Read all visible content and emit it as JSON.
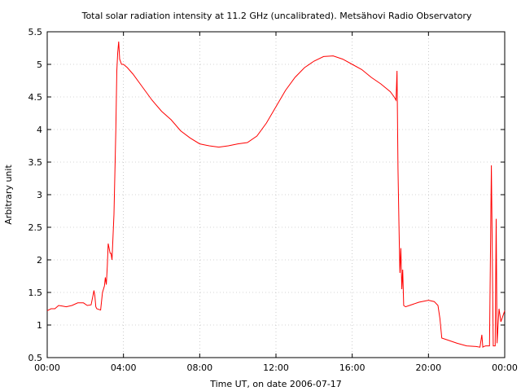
{
  "chart_data": {
    "type": "line",
    "title": "Total solar radiation intensity at 11.2 GHz (uncalibrated). Metsähovi Radio Observatory",
    "xlabel": "Time UT, on date 2006-07-17",
    "ylabel": "Arbitrary unit",
    "xlim": [
      0,
      24
    ],
    "ylim": [
      0.5,
      5.5
    ],
    "grid": true,
    "line_color": "#ff0000",
    "x_ticks": [
      0,
      4,
      8,
      12,
      16,
      20,
      24
    ],
    "x_tick_labels": [
      "00:00",
      "04:00",
      "08:00",
      "12:00",
      "16:00",
      "20:00",
      "00:00"
    ],
    "y_ticks": [
      0.5,
      1,
      1.5,
      2,
      2.5,
      3,
      3.5,
      4,
      4.5,
      5,
      5.5
    ],
    "y_tick_labels": [
      "0.5",
      "1",
      "1.5",
      "2",
      "2.5",
      "3",
      "3.5",
      "4",
      "4.5",
      "5",
      "5.5"
    ],
    "series": [
      {
        "x": [
          0,
          0.2,
          0.4,
          0.6,
          0.8,
          1.0,
          1.3,
          1.6,
          1.9,
          2.1,
          2.3,
          2.4,
          2.45,
          2.5,
          2.55,
          2.6,
          2.7,
          2.8,
          2.9,
          3.0,
          3.05,
          3.1,
          3.15,
          3.2,
          3.3,
          3.35,
          3.4,
          3.5,
          3.6,
          3.65,
          3.7,
          3.75,
          3.8,
          3.9,
          4.0,
          4.2,
          4.5,
          5.0,
          5.5,
          6.0,
          6.5,
          7.0,
          7.5,
          8.0,
          8.5,
          9.0,
          9.5,
          10.0,
          10.5,
          11.0,
          11.5,
          12.0,
          12.5,
          13.0,
          13.5,
          14.0,
          14.5,
          15.0,
          15.5,
          16.0,
          16.5,
          17.0,
          17.5,
          18.0,
          18.2,
          18.3,
          18.35,
          18.4,
          18.45,
          18.5,
          18.55,
          18.6,
          18.65,
          18.7,
          18.8,
          19.0,
          19.5,
          20.0,
          20.3,
          20.5,
          20.6,
          20.7,
          21.0,
          21.5,
          22.0,
          22.5,
          22.7,
          22.8,
          22.85,
          22.9,
          23.0,
          23.2,
          23.3,
          23.4,
          23.5,
          23.55,
          23.6,
          23.7,
          23.8,
          24.0
        ],
        "y": [
          1.22,
          1.25,
          1.25,
          1.3,
          1.29,
          1.28,
          1.3,
          1.34,
          1.34,
          1.3,
          1.31,
          1.45,
          1.53,
          1.45,
          1.28,
          1.25,
          1.24,
          1.23,
          1.5,
          1.6,
          1.73,
          1.62,
          1.9,
          2.25,
          2.1,
          2.1,
          2.0,
          2.7,
          4.0,
          4.9,
          5.18,
          5.35,
          5.08,
          5.0,
          5.0,
          4.95,
          4.85,
          4.65,
          4.45,
          4.28,
          4.15,
          3.98,
          3.87,
          3.78,
          3.75,
          3.73,
          3.75,
          3.78,
          3.8,
          3.9,
          4.1,
          4.35,
          4.6,
          4.8,
          4.95,
          5.05,
          5.12,
          5.13,
          5.08,
          5.0,
          4.92,
          4.8,
          4.7,
          4.58,
          4.5,
          4.45,
          4.9,
          3.4,
          2.6,
          1.8,
          2.18,
          1.55,
          1.85,
          1.3,
          1.28,
          1.3,
          1.35,
          1.38,
          1.36,
          1.3,
          1.1,
          0.8,
          0.77,
          0.72,
          0.68,
          0.67,
          0.66,
          0.85,
          0.66,
          0.67,
          0.68,
          0.68,
          3.45,
          0.68,
          0.68,
          2.63,
          0.72,
          1.25,
          1.05,
          1.22
        ]
      }
    ]
  }
}
